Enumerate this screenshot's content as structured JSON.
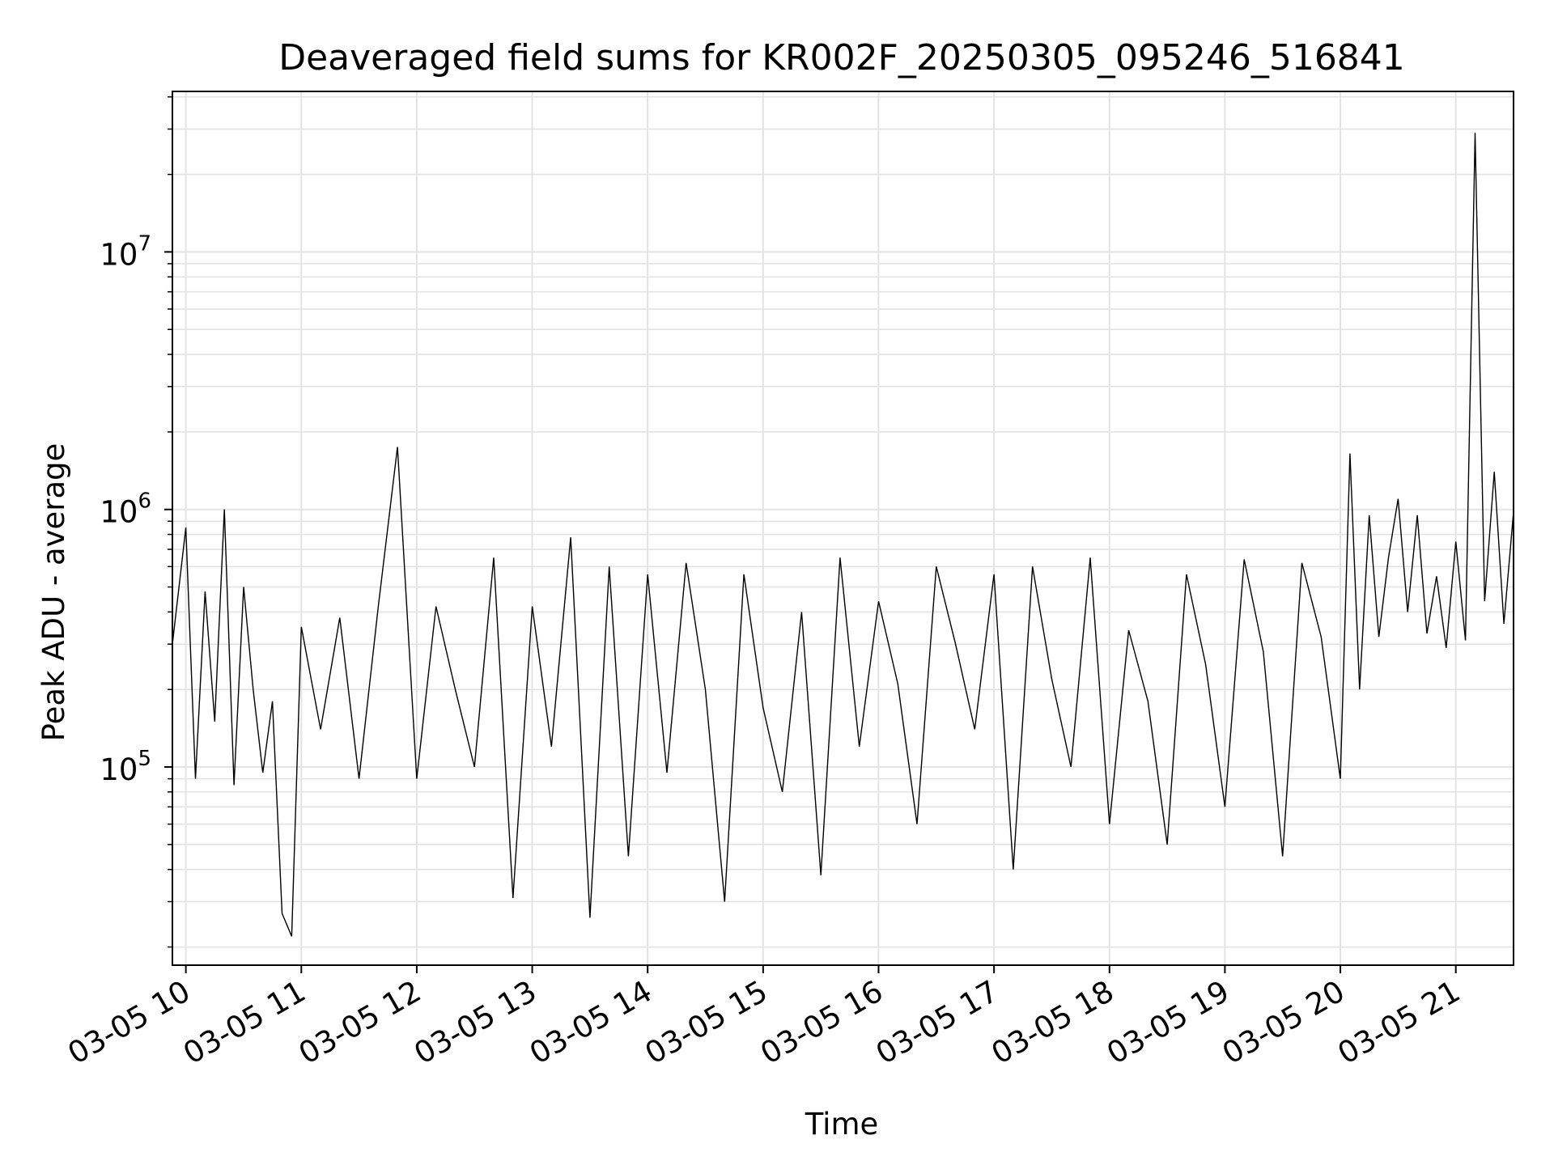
{
  "chart_data": {
    "type": "line",
    "title": "Deaveraged field sums for KR002F_20250305_095246_516841",
    "xlabel": "Time",
    "ylabel": "Peak ADU - average",
    "yscale": "log",
    "ylim": [
      17000,
      42000000
    ],
    "grid": true,
    "line_color": "#000000",
    "grid_color": "#e3e3e3",
    "xlim": [
      "2025-03-05 09:53",
      "2025-03-05 21:30"
    ],
    "x_ticks": [
      {
        "t": "2025-03-05 10:00",
        "label": "03-05 10"
      },
      {
        "t": "2025-03-05 11:00",
        "label": "03-05 11"
      },
      {
        "t": "2025-03-05 12:00",
        "label": "03-05 12"
      },
      {
        "t": "2025-03-05 13:00",
        "label": "03-05 13"
      },
      {
        "t": "2025-03-05 14:00",
        "label": "03-05 14"
      },
      {
        "t": "2025-03-05 15:00",
        "label": "03-05 15"
      },
      {
        "t": "2025-03-05 16:00",
        "label": "03-05 16"
      },
      {
        "t": "2025-03-05 17:00",
        "label": "03-05 17"
      },
      {
        "t": "2025-03-05 18:00",
        "label": "03-05 18"
      },
      {
        "t": "2025-03-05 19:00",
        "label": "03-05 19"
      },
      {
        "t": "2025-03-05 20:00",
        "label": "03-05 20"
      },
      {
        "t": "2025-03-05 21:00",
        "label": "03-05 21"
      }
    ],
    "y_ticks": [
      {
        "value": 100000,
        "base": "10",
        "exp": "5"
      },
      {
        "value": 1000000,
        "base": "10",
        "exp": "6"
      },
      {
        "value": 10000000,
        "base": "10",
        "exp": "7"
      }
    ],
    "series": [
      {
        "x": [
          "2025-03-05 09:53",
          "2025-03-05 10:00",
          "2025-03-05 10:05",
          "2025-03-05 10:10",
          "2025-03-05 10:15",
          "2025-03-05 10:20",
          "2025-03-05 10:25",
          "2025-03-05 10:30",
          "2025-03-05 10:35",
          "2025-03-05 10:40",
          "2025-03-05 10:45",
          "2025-03-05 10:50",
          "2025-03-05 10:55",
          "2025-03-05 11:00",
          "2025-03-05 11:10",
          "2025-03-05 11:20",
          "2025-03-05 11:30",
          "2025-03-05 11:40",
          "2025-03-05 11:50",
          "2025-03-05 12:00",
          "2025-03-05 12:10",
          "2025-03-05 12:20",
          "2025-03-05 12:30",
          "2025-03-05 12:40",
          "2025-03-05 12:50",
          "2025-03-05 13:00",
          "2025-03-05 13:10",
          "2025-03-05 13:20",
          "2025-03-05 13:30",
          "2025-03-05 13:40",
          "2025-03-05 13:50",
          "2025-03-05 14:00",
          "2025-03-05 14:10",
          "2025-03-05 14:20",
          "2025-03-05 14:30",
          "2025-03-05 14:40",
          "2025-03-05 14:50",
          "2025-03-05 15:00",
          "2025-03-05 15:10",
          "2025-03-05 15:20",
          "2025-03-05 15:30",
          "2025-03-05 15:40",
          "2025-03-05 15:50",
          "2025-03-05 16:00",
          "2025-03-05 16:10",
          "2025-03-05 16:20",
          "2025-03-05 16:30",
          "2025-03-05 16:40",
          "2025-03-05 16:50",
          "2025-03-05 17:00",
          "2025-03-05 17:10",
          "2025-03-05 17:20",
          "2025-03-05 17:30",
          "2025-03-05 17:40",
          "2025-03-05 17:50",
          "2025-03-05 18:00",
          "2025-03-05 18:10",
          "2025-03-05 18:20",
          "2025-03-05 18:30",
          "2025-03-05 18:40",
          "2025-03-05 18:50",
          "2025-03-05 19:00",
          "2025-03-05 19:10",
          "2025-03-05 19:20",
          "2025-03-05 19:30",
          "2025-03-05 19:40",
          "2025-03-05 19:50",
          "2025-03-05 20:00",
          "2025-03-05 20:05",
          "2025-03-05 20:10",
          "2025-03-05 20:15",
          "2025-03-05 20:20",
          "2025-03-05 20:25",
          "2025-03-05 20:30",
          "2025-03-05 20:35",
          "2025-03-05 20:40",
          "2025-03-05 20:45",
          "2025-03-05 20:50",
          "2025-03-05 20:55",
          "2025-03-05 21:00",
          "2025-03-05 21:05",
          "2025-03-05 21:10",
          "2025-03-05 21:15",
          "2025-03-05 21:20",
          "2025-03-05 21:25",
          "2025-03-05 21:30"
        ],
        "y": [
          300000,
          850000,
          90000,
          480000,
          150000,
          1000000,
          85000,
          500000,
          200000,
          95000,
          180000,
          27000,
          22000,
          350000,
          140000,
          380000,
          90000,
          420000,
          1750000,
          90000,
          420000,
          200000,
          100000,
          650000,
          31000,
          420000,
          120000,
          780000,
          26000,
          600000,
          45000,
          560000,
          95000,
          620000,
          200000,
          30000,
          560000,
          170000,
          80000,
          400000,
          38000,
          650000,
          120000,
          440000,
          210000,
          60000,
          600000,
          300000,
          140000,
          560000,
          40000,
          600000,
          220000,
          100000,
          650000,
          60000,
          340000,
          180000,
          50000,
          560000,
          250000,
          70000,
          640000,
          280000,
          45000,
          620000,
          320000,
          90000,
          1650000,
          200000,
          950000,
          320000,
          650000,
          1100000,
          400000,
          950000,
          330000,
          550000,
          290000,
          750000,
          310000,
          29000000,
          440000,
          1400000,
          360000,
          980000
        ]
      }
    ]
  }
}
